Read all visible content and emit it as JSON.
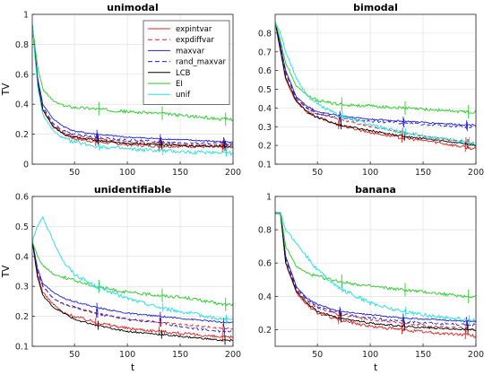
{
  "chart_data": [
    {
      "type": "line",
      "title": "unimodal",
      "xlabel": "",
      "ylabel": "TV",
      "xlim": [
        10,
        200
      ],
      "ylim": [
        0,
        1
      ],
      "xticks": [
        "50",
        "100",
        "150",
        "200"
      ],
      "xtick_values": [
        50,
        100,
        150,
        200
      ],
      "yticks": [
        "0",
        "0.2",
        "0.4",
        "0.6",
        "0.8",
        "1"
      ],
      "ytick_values": [
        0,
        0.2,
        0.4,
        0.6,
        0.8,
        1
      ],
      "grid": true,
      "legend_position": "top-right",
      "series": [
        {
          "name": "expintvar",
          "color": "#e02020",
          "dash": "solid",
          "x": [
            10,
            15,
            20,
            30,
            40,
            50,
            70,
            100,
            130,
            160,
            190,
            200
          ],
          "y": [
            0.93,
            0.55,
            0.36,
            0.25,
            0.2,
            0.17,
            0.15,
            0.13,
            0.12,
            0.12,
            0.11,
            0.11
          ]
        },
        {
          "name": "expdiffvar",
          "color": "#e02020",
          "dash": "dashed",
          "x": [
            10,
            15,
            20,
            30,
            40,
            50,
            70,
            100,
            130,
            160,
            190,
            200
          ],
          "y": [
            0.93,
            0.56,
            0.37,
            0.26,
            0.21,
            0.19,
            0.17,
            0.15,
            0.14,
            0.13,
            0.13,
            0.13
          ]
        },
        {
          "name": "maxvar",
          "color": "#2020d0",
          "dash": "solid",
          "x": [
            10,
            15,
            20,
            30,
            40,
            50,
            70,
            100,
            130,
            160,
            190,
            200
          ],
          "y": [
            0.93,
            0.58,
            0.4,
            0.3,
            0.25,
            0.22,
            0.2,
            0.18,
            0.17,
            0.16,
            0.15,
            0.15
          ]
        },
        {
          "name": "rand_maxvar",
          "color": "#2020d0",
          "dash": "dashed",
          "x": [
            10,
            15,
            20,
            30,
            40,
            50,
            70,
            100,
            130,
            160,
            190,
            200
          ],
          "y": [
            0.93,
            0.57,
            0.38,
            0.27,
            0.22,
            0.2,
            0.18,
            0.16,
            0.15,
            0.14,
            0.14,
            0.13
          ]
        },
        {
          "name": "LCB",
          "color": "#000000",
          "dash": "solid",
          "x": [
            10,
            15,
            20,
            30,
            40,
            50,
            70,
            100,
            130,
            160,
            190,
            200
          ],
          "y": [
            0.93,
            0.55,
            0.36,
            0.25,
            0.2,
            0.18,
            0.16,
            0.14,
            0.13,
            0.12,
            0.12,
            0.12
          ]
        },
        {
          "name": "EI",
          "color": "#22cc22",
          "dash": "solid",
          "x": [
            10,
            15,
            20,
            30,
            40,
            50,
            70,
            100,
            130,
            160,
            190,
            200
          ],
          "y": [
            0.93,
            0.65,
            0.5,
            0.42,
            0.39,
            0.38,
            0.37,
            0.35,
            0.34,
            0.32,
            0.3,
            0.3
          ]
        },
        {
          "name": "unif",
          "color": "#22dddd",
          "dash": "solid",
          "x": [
            10,
            15,
            20,
            30,
            40,
            50,
            70,
            100,
            130,
            160,
            190,
            200
          ],
          "y": [
            0.93,
            0.52,
            0.33,
            0.22,
            0.17,
            0.15,
            0.12,
            0.1,
            0.09,
            0.08,
            0.08,
            0.07
          ]
        }
      ]
    },
    {
      "type": "line",
      "title": "bimodal",
      "xlabel": "",
      "ylabel": "",
      "xlim": [
        10,
        200
      ],
      "ylim": [
        0.1,
        0.9
      ],
      "xticks": [
        "50",
        "100",
        "150",
        "200"
      ],
      "xtick_values": [
        50,
        100,
        150,
        200
      ],
      "yticks": [
        "0.1",
        "0.2",
        "0.3",
        "0.4",
        "0.5",
        "0.6",
        "0.7",
        "0.8"
      ],
      "ytick_values": [
        0.1,
        0.2,
        0.3,
        0.4,
        0.5,
        0.6,
        0.7,
        0.8
      ],
      "grid": true,
      "series": [
        {
          "name": "expintvar",
          "x": [
            10,
            15,
            20,
            30,
            40,
            50,
            70,
            100,
            130,
            160,
            190,
            200
          ],
          "y": [
            0.86,
            0.7,
            0.55,
            0.43,
            0.38,
            0.35,
            0.31,
            0.27,
            0.24,
            0.22,
            0.19,
            0.18
          ]
        },
        {
          "name": "expdiffvar",
          "x": [
            10,
            15,
            20,
            30,
            40,
            50,
            70,
            100,
            130,
            160,
            190,
            200
          ],
          "y": [
            0.86,
            0.72,
            0.58,
            0.46,
            0.4,
            0.37,
            0.34,
            0.3,
            0.27,
            0.24,
            0.22,
            0.21
          ]
        },
        {
          "name": "maxvar",
          "x": [
            10,
            15,
            20,
            30,
            40,
            50,
            70,
            100,
            130,
            160,
            190,
            200
          ],
          "y": [
            0.86,
            0.74,
            0.6,
            0.46,
            0.41,
            0.38,
            0.36,
            0.34,
            0.33,
            0.32,
            0.31,
            0.31
          ]
        },
        {
          "name": "rand_maxvar",
          "x": [
            10,
            15,
            20,
            30,
            40,
            50,
            70,
            100,
            130,
            160,
            190,
            200
          ],
          "y": [
            0.86,
            0.73,
            0.59,
            0.45,
            0.4,
            0.37,
            0.35,
            0.33,
            0.32,
            0.31,
            0.3,
            0.3
          ]
        },
        {
          "name": "LCB",
          "x": [
            10,
            15,
            20,
            30,
            40,
            50,
            70,
            100,
            130,
            160,
            190,
            200
          ],
          "y": [
            0.86,
            0.71,
            0.56,
            0.44,
            0.38,
            0.35,
            0.31,
            0.28,
            0.25,
            0.23,
            0.21,
            0.2
          ]
        },
        {
          "name": "EI",
          "x": [
            10,
            15,
            20,
            30,
            40,
            50,
            70,
            100,
            130,
            160,
            190,
            200
          ],
          "y": [
            0.86,
            0.76,
            0.64,
            0.52,
            0.47,
            0.44,
            0.42,
            0.41,
            0.4,
            0.39,
            0.38,
            0.38
          ]
        },
        {
          "name": "unif",
          "x": [
            10,
            15,
            20,
            30,
            40,
            50,
            70,
            100,
            130,
            160,
            190,
            200
          ],
          "y": [
            0.86,
            0.8,
            0.7,
            0.56,
            0.47,
            0.42,
            0.36,
            0.31,
            0.27,
            0.24,
            0.22,
            0.21
          ]
        }
      ]
    },
    {
      "type": "line",
      "title": "unidentifiable",
      "xlabel": "t",
      "ylabel": "TV",
      "xlim": [
        10,
        200
      ],
      "ylim": [
        0.1,
        0.6
      ],
      "xticks": [
        "50",
        "100",
        "150",
        "200"
      ],
      "xtick_values": [
        50,
        100,
        150,
        200
      ],
      "yticks": [
        "0.1",
        "0.2",
        "0.3",
        "0.4",
        "0.5",
        "0.6"
      ],
      "ytick_values": [
        0.1,
        0.2,
        0.3,
        0.4,
        0.5,
        0.6
      ],
      "grid": true,
      "series": [
        {
          "name": "expintvar",
          "x": [
            10,
            15,
            20,
            30,
            40,
            50,
            70,
            100,
            130,
            160,
            190,
            200
          ],
          "y": [
            0.45,
            0.34,
            0.28,
            0.24,
            0.21,
            0.2,
            0.18,
            0.16,
            0.15,
            0.14,
            0.13,
            0.13
          ]
        },
        {
          "name": "expdiffvar",
          "x": [
            10,
            15,
            20,
            30,
            40,
            50,
            70,
            100,
            130,
            160,
            190,
            200
          ],
          "y": [
            0.45,
            0.35,
            0.3,
            0.26,
            0.24,
            0.23,
            0.21,
            0.19,
            0.18,
            0.17,
            0.16,
            0.16
          ]
        },
        {
          "name": "maxvar",
          "x": [
            10,
            15,
            20,
            30,
            40,
            50,
            70,
            100,
            130,
            160,
            190,
            200
          ],
          "y": [
            0.45,
            0.36,
            0.31,
            0.28,
            0.26,
            0.25,
            0.23,
            0.21,
            0.2,
            0.19,
            0.18,
            0.18
          ]
        },
        {
          "name": "rand_maxvar",
          "x": [
            10,
            15,
            20,
            30,
            40,
            50,
            70,
            100,
            130,
            160,
            190,
            200
          ],
          "y": [
            0.45,
            0.35,
            0.3,
            0.26,
            0.24,
            0.23,
            0.21,
            0.19,
            0.18,
            0.16,
            0.15,
            0.15
          ]
        },
        {
          "name": "LCB",
          "x": [
            10,
            15,
            20,
            30,
            40,
            50,
            70,
            100,
            130,
            160,
            190,
            200
          ],
          "y": [
            0.45,
            0.33,
            0.27,
            0.23,
            0.21,
            0.19,
            0.17,
            0.15,
            0.14,
            0.13,
            0.12,
            0.12
          ]
        },
        {
          "name": "EI",
          "x": [
            10,
            15,
            20,
            30,
            40,
            50,
            70,
            100,
            130,
            160,
            190,
            200
          ],
          "y": [
            0.45,
            0.4,
            0.37,
            0.34,
            0.33,
            0.32,
            0.3,
            0.28,
            0.27,
            0.26,
            0.24,
            0.24
          ]
        },
        {
          "name": "unif",
          "x": [
            10,
            15,
            20,
            30,
            40,
            50,
            70,
            100,
            130,
            160,
            190,
            200
          ],
          "y": [
            0.45,
            0.5,
            0.53,
            0.45,
            0.38,
            0.34,
            0.3,
            0.26,
            0.23,
            0.21,
            0.19,
            0.19
          ]
        }
      ]
    },
    {
      "type": "line",
      "title": "banana",
      "xlabel": "t",
      "ylabel": "",
      "xlim": [
        10,
        200
      ],
      "ylim": [
        0.1,
        1
      ],
      "xticks": [
        "50",
        "100",
        "150",
        "200"
      ],
      "xtick_values": [
        50,
        100,
        150,
        200
      ],
      "yticks": [
        "0.2",
        "0.4",
        "0.6",
        "0.8",
        "1"
      ],
      "ytick_values": [
        0.2,
        0.4,
        0.6,
        0.8,
        1
      ],
      "grid": true,
      "series": [
        {
          "name": "expintvar",
          "x": [
            10,
            15,
            20,
            30,
            40,
            50,
            70,
            100,
            130,
            160,
            190,
            200
          ],
          "y": [
            0.9,
            0.9,
            0.6,
            0.42,
            0.35,
            0.3,
            0.26,
            0.22,
            0.2,
            0.18,
            0.17,
            0.16
          ]
        },
        {
          "name": "expdiffvar",
          "x": [
            10,
            15,
            20,
            30,
            40,
            50,
            70,
            100,
            130,
            160,
            190,
            200
          ],
          "y": [
            0.9,
            0.9,
            0.62,
            0.44,
            0.37,
            0.33,
            0.29,
            0.26,
            0.24,
            0.22,
            0.21,
            0.2
          ]
        },
        {
          "name": "maxvar",
          "x": [
            10,
            15,
            20,
            30,
            40,
            50,
            70,
            100,
            130,
            160,
            190,
            200
          ],
          "y": [
            0.9,
            0.9,
            0.64,
            0.46,
            0.39,
            0.35,
            0.31,
            0.29,
            0.27,
            0.26,
            0.25,
            0.25
          ]
        },
        {
          "name": "rand_maxvar",
          "x": [
            10,
            15,
            20,
            30,
            40,
            50,
            70,
            100,
            130,
            160,
            190,
            200
          ],
          "y": [
            0.9,
            0.9,
            0.63,
            0.45,
            0.38,
            0.34,
            0.3,
            0.27,
            0.25,
            0.24,
            0.23,
            0.23
          ]
        },
        {
          "name": "LCB",
          "x": [
            10,
            15,
            20,
            30,
            40,
            50,
            70,
            100,
            130,
            160,
            190,
            200
          ],
          "y": [
            0.9,
            0.9,
            0.6,
            0.43,
            0.36,
            0.31,
            0.27,
            0.24,
            0.22,
            0.21,
            0.2,
            0.2
          ]
        },
        {
          "name": "EI",
          "x": [
            10,
            15,
            20,
            30,
            40,
            50,
            70,
            100,
            130,
            160,
            190,
            200
          ],
          "y": [
            0.9,
            0.9,
            0.7,
            0.58,
            0.54,
            0.52,
            0.49,
            0.46,
            0.44,
            0.42,
            0.4,
            0.4
          ]
        },
        {
          "name": "unif",
          "x": [
            10,
            15,
            20,
            30,
            40,
            50,
            70,
            100,
            130,
            160,
            190,
            200
          ],
          "y": [
            0.9,
            0.9,
            0.8,
            0.72,
            0.64,
            0.56,
            0.45,
            0.36,
            0.31,
            0.28,
            0.26,
            0.26
          ]
        }
      ]
    }
  ]
}
